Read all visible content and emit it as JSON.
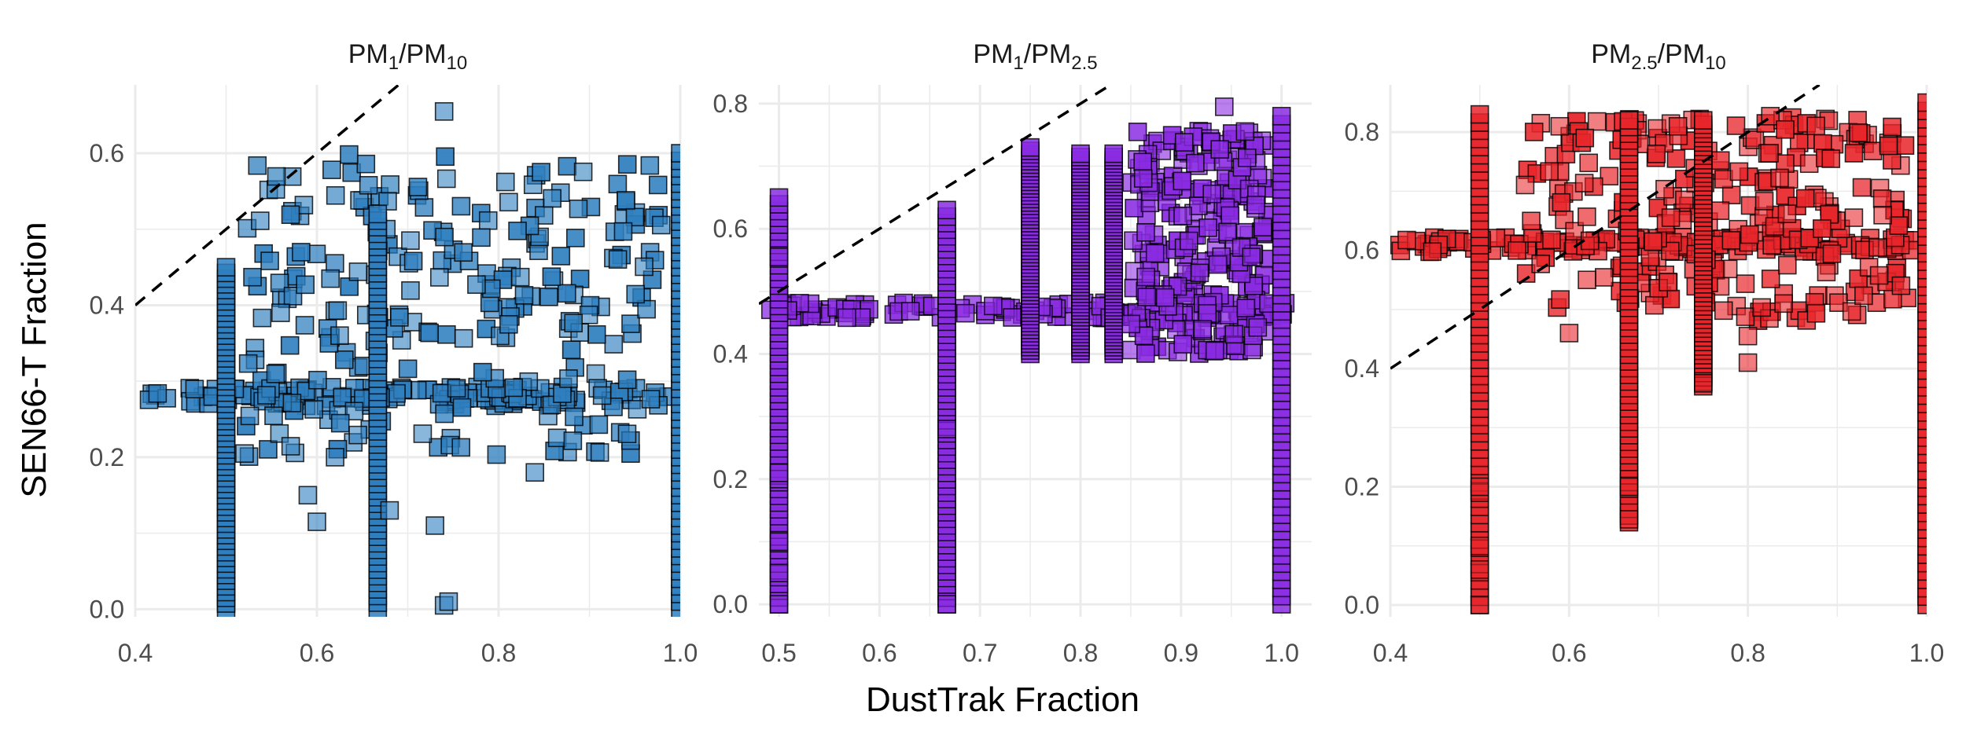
{
  "chart_data": [
    {
      "type": "scatter",
      "title": [
        "PM",
        "1",
        "/PM",
        "10"
      ],
      "color": "#2f7fbf",
      "xlim": [
        0.4,
        1.0
      ],
      "ylim": [
        -0.01,
        0.69
      ],
      "xticks": [
        "0.4",
        "0.6",
        "0.8",
        "1.0"
      ],
      "xtick_values": [
        0.4,
        0.6,
        0.8,
        1.0
      ],
      "yticks": [
        "0.0",
        "0.2",
        "0.4",
        "0.6"
      ],
      "ytick_values": [
        0.0,
        0.2,
        0.4,
        0.6
      ],
      "reference_line": "y = x",
      "column_x": [
        0.5,
        0.667,
        1.0
      ],
      "column_y_range": [
        [
          0.0,
          0.45
        ],
        [
          0.0,
          0.52
        ],
        [
          0.0,
          0.6
        ]
      ],
      "plateau_y": 0.28,
      "cloud": {
        "x": [
          0.52,
          0.98
        ],
        "y": [
          0.2,
          0.6
        ]
      },
      "points": [
        [
          0.74,
          0.655
        ],
        [
          0.74,
          0.005
        ],
        [
          0.745,
          0.01
        ],
        [
          0.6,
          0.115
        ],
        [
          0.62,
          0.2
        ],
        [
          0.625,
          0.36
        ],
        [
          0.59,
          0.15
        ],
        [
          0.56,
          0.39
        ],
        [
          0.68,
          0.13
        ],
        [
          0.73,
          0.11
        ],
        [
          0.84,
          0.18
        ]
      ]
    },
    {
      "type": "scatter",
      "title": [
        "PM",
        "1",
        "/PM",
        "2.5"
      ],
      "color": "#8a2be2",
      "xlim": [
        0.48,
        1.03
      ],
      "ylim": [
        -0.02,
        0.83
      ],
      "xticks": [
        "0.5",
        "0.6",
        "0.7",
        "0.8",
        "0.9",
        "1.0"
      ],
      "xtick_values": [
        0.5,
        0.6,
        0.7,
        0.8,
        0.9,
        1.0
      ],
      "yticks": [
        "0.0",
        "0.2",
        "0.4",
        "0.6",
        "0.8"
      ],
      "ytick_values": [
        0.0,
        0.2,
        0.4,
        0.6,
        0.8
      ],
      "reference_line": "y = x",
      "column_x": [
        0.5,
        0.667,
        0.75,
        0.8,
        0.833,
        1.0
      ],
      "column_y_range": [
        [
          0.0,
          0.65
        ],
        [
          0.0,
          0.63
        ],
        [
          0.4,
          0.73
        ],
        [
          0.4,
          0.72
        ],
        [
          0.4,
          0.72
        ],
        [
          0.0,
          0.78
        ]
      ],
      "plateau_y": 0.47,
      "cloud": {
        "x": [
          0.85,
          0.99
        ],
        "y": [
          0.4,
          0.76
        ]
      },
      "points": [
        [
          0.5,
          0.05
        ],
        [
          0.5,
          0.1
        ],
        [
          0.5,
          0.2
        ],
        [
          0.5,
          0.21
        ],
        [
          0.5,
          0.555
        ],
        [
          0.667,
          0.28
        ],
        [
          0.667,
          0.0
        ],
        [
          0.5,
          0.0
        ],
        [
          0.943,
          0.795
        ],
        [
          0.96,
          0.57
        ],
        [
          0.97,
          0.555
        ]
      ]
    },
    {
      "type": "scatter",
      "title": [
        "PM",
        "2.5",
        "/PM",
        "10"
      ],
      "color": "#e8262b",
      "xlim": [
        0.4,
        1.0
      ],
      "ylim": [
        -0.02,
        0.88
      ],
      "xticks": [
        "0.4",
        "0.6",
        "0.8",
        "1.0"
      ],
      "xtick_values": [
        0.4,
        0.6,
        0.8,
        1.0
      ],
      "yticks": [
        "0.0",
        "0.2",
        "0.4",
        "0.6",
        "0.8"
      ],
      "ytick_values": [
        0.0,
        0.2,
        0.4,
        0.6,
        0.8
      ],
      "reference_line": "y = x",
      "column_x": [
        0.5,
        0.667,
        0.75,
        1.0
      ],
      "column_y_range": [
        [
          0.0,
          0.83
        ],
        [
          0.14,
          0.82
        ],
        [
          0.37,
          0.82
        ],
        [
          0.0,
          0.85
        ]
      ],
      "plateau_y": 0.61,
      "cloud": {
        "x": [
          0.55,
          0.98
        ],
        "y": [
          0.48,
          0.83
        ]
      },
      "points": [
        [
          0.5,
          0.0
        ],
        [
          0.5,
          0.06
        ],
        [
          0.5,
          0.1
        ],
        [
          0.5,
          0.19
        ],
        [
          0.5,
          0.2
        ],
        [
          0.667,
          0.2
        ],
        [
          0.667,
          0.145
        ],
        [
          0.8,
          0.41
        ],
        [
          0.8,
          0.455
        ],
        [
          0.75,
          0.375
        ],
        [
          0.84,
          0.51
        ],
        [
          0.6,
          0.46
        ],
        [
          0.62,
          0.55
        ]
      ]
    }
  ],
  "axes": {
    "xlabel": "DustTrak Fraction",
    "ylabel": "SEN66-T Fraction"
  }
}
